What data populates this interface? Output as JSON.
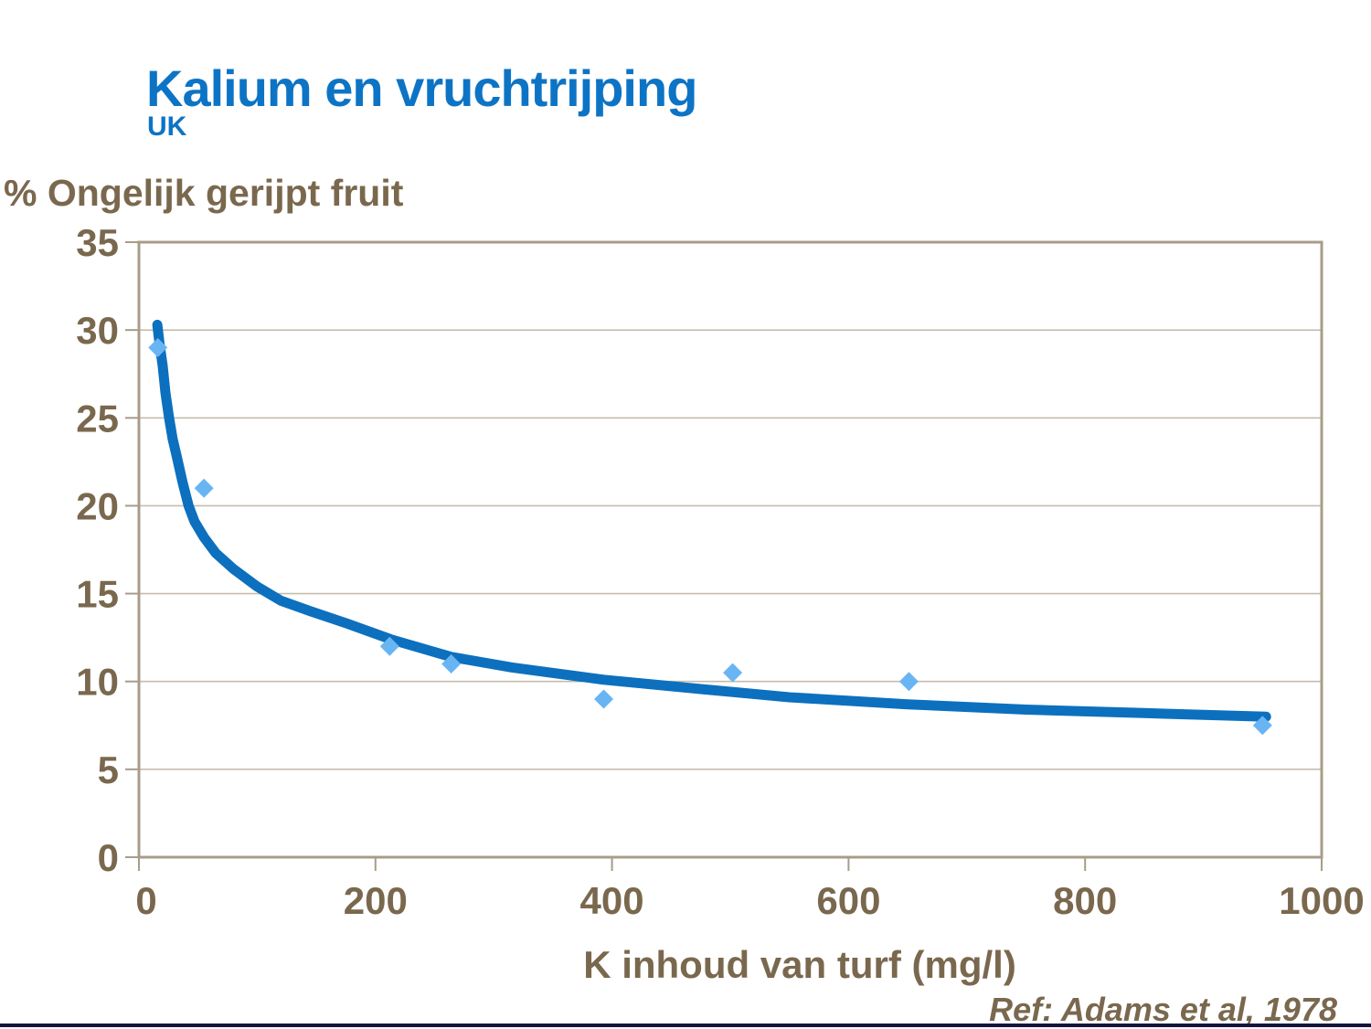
{
  "slide": {
    "title": "Kalium en vruchtrijping",
    "subtitle": "UK",
    "footer_ref": "Ref: Adams et al, 1978"
  },
  "colors": {
    "title_blue": "#0d74c5",
    "text_brown": "#7a684e",
    "axis_tan": "#a89c8a",
    "gridline_tan": "#c6bcae",
    "curve_blue": "#0c70be",
    "marker_blue": "#69b5f4",
    "footer_bar_navy": "#15153f",
    "background": "#ffffff"
  },
  "chart_data": {
    "type": "scatter",
    "title": "",
    "ylabel": "% Ongelijk gerijpt fruit",
    "xlabel": "K inhoud van turf (mg/l)",
    "xlim": [
      0,
      1000
    ],
    "ylim": [
      0,
      35
    ],
    "x_ticks": [
      0,
      200,
      400,
      600,
      800,
      1000
    ],
    "y_ticks": [
      0,
      5,
      10,
      15,
      20,
      25,
      30,
      35
    ],
    "grid": "horizontal",
    "legend": "none",
    "points": [
      [
        16,
        29
      ],
      [
        55,
        21
      ],
      [
        212,
        12
      ],
      [
        264,
        11
      ],
      [
        393,
        9
      ],
      [
        502,
        10.5
      ],
      [
        651,
        10
      ],
      [
        950,
        7.5
      ]
    ],
    "trend_curve": [
      [
        15.5,
        30.3
      ],
      [
        17.5,
        29.2
      ],
      [
        20,
        28.0
      ],
      [
        22.5,
        26.4
      ],
      [
        25.5,
        25.0
      ],
      [
        28.5,
        23.8
      ],
      [
        32,
        22.8
      ],
      [
        37,
        21.3
      ],
      [
        42,
        20.0
      ],
      [
        47,
        19.1
      ],
      [
        55,
        18.2
      ],
      [
        65,
        17.3
      ],
      [
        80,
        16.4
      ],
      [
        100,
        15.4
      ],
      [
        120,
        14.6
      ],
      [
        145,
        14.0
      ],
      [
        176,
        13.3
      ],
      [
        213,
        12.4
      ],
      [
        264,
        11.4
      ],
      [
        315,
        10.8
      ],
      [
        393,
        10.1
      ],
      [
        470,
        9.6
      ],
      [
        550,
        9.1
      ],
      [
        650,
        8.7
      ],
      [
        750,
        8.4
      ],
      [
        850,
        8.2
      ],
      [
        953,
        8.0
      ]
    ]
  }
}
